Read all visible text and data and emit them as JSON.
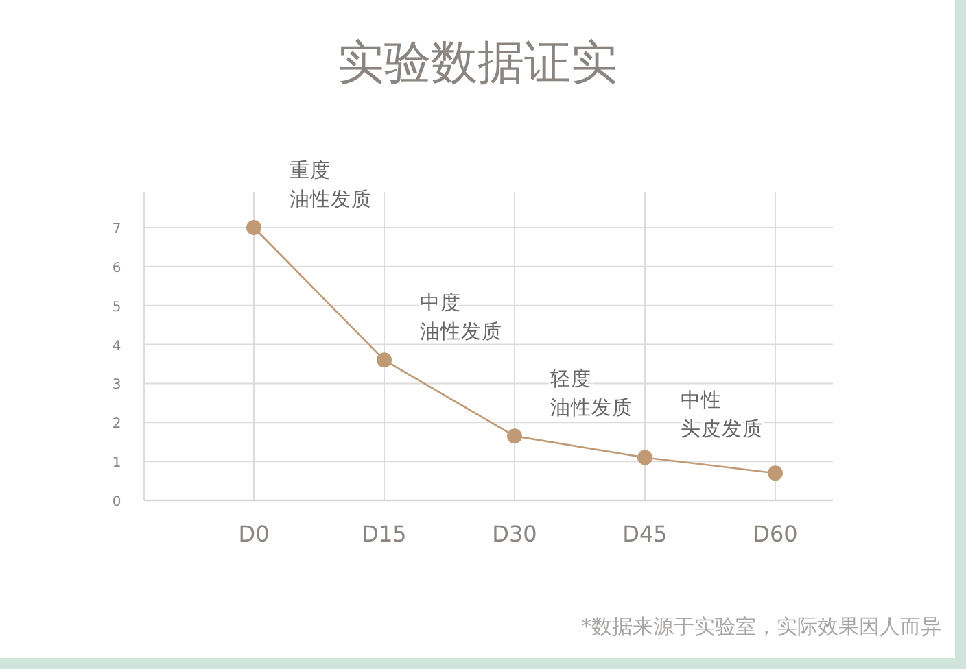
{
  "chart_data": {
    "type": "line",
    "title": "实验数据证实",
    "categories": [
      "D0",
      "D15",
      "D30",
      "D45",
      "D60"
    ],
    "series": [
      {
        "color": "#bf9a74",
        "values": [
          7,
          3.6,
          1.65,
          1.1,
          0.7
        ]
      }
    ],
    "ylim": [
      0,
      7
    ],
    "yticks": [
      0,
      1,
      2,
      3,
      4,
      5,
      6,
      7
    ],
    "grid": true,
    "marker": "circle",
    "line_style": "solid",
    "annotations": [
      {
        "text": "重度",
        "x": "D0",
        "y": 7
      },
      {
        "text": "油性发质",
        "x": "D0",
        "y": 7
      },
      {
        "text": "中度",
        "x": "D15",
        "y": 3.6
      },
      {
        "text": "油性发质",
        "x": "D15",
        "y": 3.6
      },
      {
        "text": "轻度",
        "x": "D30",
        "y": 1.65
      },
      {
        "text": "油性发质",
        "x": "D30",
        "y": 1.65
      },
      {
        "text": "中性",
        "x": "D45",
        "y": 1.1
      },
      {
        "text": "头皮发质",
        "x": "D45",
        "y": 1.1
      },
      "*数据来源于实验室，实际效果因人而异"
    ]
  }
}
